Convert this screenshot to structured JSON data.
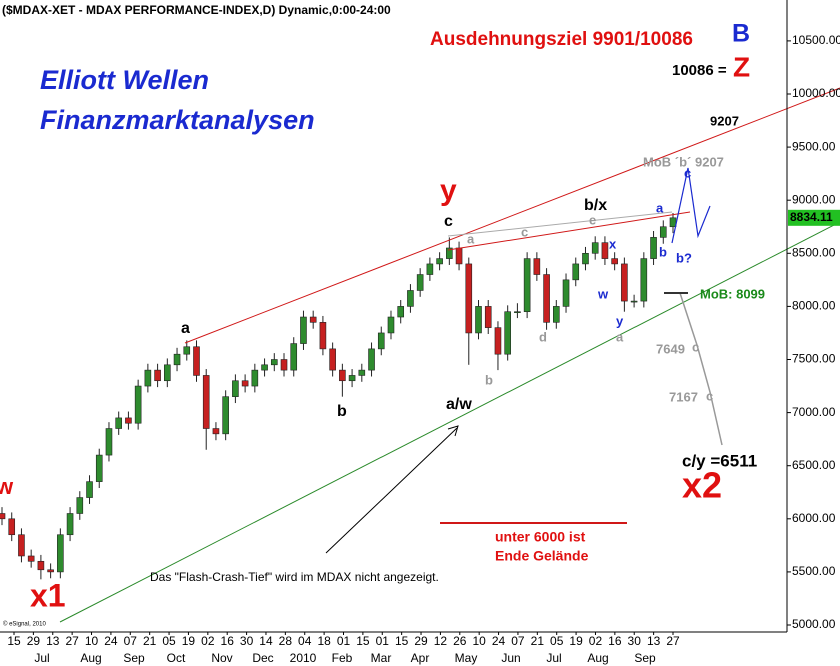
{
  "chart_data": {
    "type": "candlestick",
    "title": "($MDAX-XET - MDAX PERFORMANCE-INDEX,D) Dynamic,0:00-24:00",
    "copyright": "© eSignal, 2010",
    "up_color": "#2e8b2e",
    "down_color": "#c62020",
    "open": [
      6050,
      6000,
      5850,
      5650,
      5600,
      5520,
      5500,
      5850,
      6050,
      6200,
      6350,
      6600,
      6850,
      6950,
      6900,
      7250,
      7400,
      7300,
      7450,
      7550,
      7620,
      7350,
      6850,
      6800,
      7150,
      7300,
      7250,
      7400,
      7450,
      7500,
      7400,
      7650,
      7900,
      7850,
      7600,
      7400,
      7300,
      7350,
      7400,
      7600,
      7750,
      7900,
      8000,
      8150,
      8300,
      8400,
      8450,
      8550,
      8400,
      7750,
      8000,
      7800,
      7550,
      7950,
      7950,
      8450,
      8300,
      7850,
      8000,
      8250,
      8400,
      8500,
      8600,
      8450,
      8400,
      8050,
      8050,
      8450,
      8650,
      8750
    ],
    "high": [
      6110,
      6060,
      5910,
      5710,
      5660,
      5580,
      5910,
      6110,
      6260,
      6410,
      6660,
      6910,
      7010,
      7010,
      7310,
      7460,
      7460,
      7510,
      7610,
      7680,
      7680,
      7410,
      6910,
      7210,
      7360,
      7360,
      7460,
      7510,
      7560,
      7560,
      7710,
      7960,
      7960,
      7910,
      7660,
      7460,
      7410,
      7460,
      7660,
      7810,
      7960,
      8060,
      8210,
      8360,
      8460,
      8510,
      8650,
      8610,
      8460,
      8060,
      8060,
      7860,
      8010,
      8030,
      8510,
      8510,
      8360,
      8060,
      8310,
      8460,
      8560,
      8660,
      8660,
      8510,
      8460,
      8110,
      8510,
      8710,
      8810,
      8880
    ],
    "low": [
      5940,
      5790,
      5590,
      5540,
      5430,
      5440,
      5440,
      5790,
      5990,
      6140,
      6290,
      6540,
      6790,
      6840,
      6840,
      7190,
      7240,
      7240,
      7390,
      7490,
      7290,
      6650,
      6740,
      6740,
      7090,
      7190,
      7190,
      7340,
      7390,
      7340,
      7340,
      7590,
      7790,
      7540,
      7340,
      7150,
      7240,
      7290,
      7340,
      7540,
      7690,
      7840,
      7940,
      8090,
      8240,
      8340,
      8390,
      8340,
      7450,
      7690,
      7740,
      7400,
      7490,
      7890,
      7890,
      8240,
      7780,
      7790,
      7940,
      8190,
      8340,
      8440,
      8390,
      8340,
      7950,
      7990,
      7990,
      8390,
      8590,
      8690
    ],
    "close": [
      6000,
      5850,
      5650,
      5600,
      5520,
      5500,
      5850,
      6050,
      6200,
      6350,
      6600,
      6850,
      6950,
      6900,
      7250,
      7400,
      7300,
      7450,
      7550,
      7620,
      7350,
      6850,
      6800,
      7150,
      7300,
      7250,
      7400,
      7450,
      7500,
      7400,
      7650,
      7900,
      7850,
      7600,
      7400,
      7300,
      7350,
      7400,
      7600,
      7750,
      7900,
      8000,
      8150,
      8300,
      8400,
      8450,
      8550,
      8400,
      7750,
      8000,
      7800,
      7550,
      7950,
      7950,
      8450,
      8300,
      7850,
      8000,
      8250,
      8400,
      8500,
      8600,
      8450,
      8400,
      8050,
      8050,
      8450,
      8650,
      8750,
      8834.11
    ],
    "last_price": {
      "value": 8834.11,
      "label": "8834.11"
    },
    "ylim": [
      4953,
      10885
    ],
    "yticks": [
      {
        "value": 5000,
        "label": "5000.00"
      },
      {
        "value": 5500,
        "label": "5500.00"
      },
      {
        "value": 6000,
        "label": "6000.00"
      },
      {
        "value": 6500,
        "label": "6500.00"
      },
      {
        "value": 7000,
        "label": "7000.00"
      },
      {
        "value": 7500,
        "label": "7500.00"
      },
      {
        "value": 8000,
        "label": "8000.00"
      },
      {
        "value": 8500,
        "label": "8500.00"
      },
      {
        "value": 9000,
        "label": "9000.00"
      },
      {
        "value": 9500,
        "label": "9500.00"
      },
      {
        "value": 10000,
        "label": "10000.00"
      },
      {
        "value": 10500,
        "label": "10500.00"
      }
    ],
    "x_day_labels": [
      "15",
      "29",
      "13",
      "27",
      "10",
      "24",
      "07",
      "21",
      "05",
      "19",
      "02",
      "16",
      "30",
      "14",
      "28",
      "04",
      "18",
      "01",
      "15",
      "01",
      "15",
      "29",
      "12",
      "26",
      "10",
      "24",
      "07",
      "21",
      "05",
      "19",
      "02",
      "16",
      "30",
      "13",
      "27"
    ],
    "x_month_labels": [
      "Jul",
      "Aug",
      "Sep",
      "Oct",
      "Nov",
      "Dec",
      "2010",
      "Feb",
      "Mar",
      "Apr",
      "May",
      "Jun",
      "Jul",
      "Aug",
      "Sep"
    ],
    "annotations": [
      "Ausdehnungsziel 9901/10086",
      "B",
      "10086 =",
      "Z",
      "Elliott Wellen",
      "Finanzmarktanalysen",
      "9207",
      "MoB ´b´ 9207",
      "y",
      "c",
      "b/x",
      "e",
      "c",
      "a",
      "x",
      "w",
      "y",
      "a",
      "d",
      "b",
      "a",
      "c",
      "b",
      "b?",
      "a",
      "b",
      "a/w",
      "MoB: 8099",
      "7649",
      "c",
      "7167",
      "c",
      "c/y =6511",
      "x2",
      "x1",
      "w",
      "unter 6000 ist",
      "Ende Gelände",
      "Das \"Flash-Crash-Tief\" wird im MDAX nicht angezeigt."
    ]
  }
}
